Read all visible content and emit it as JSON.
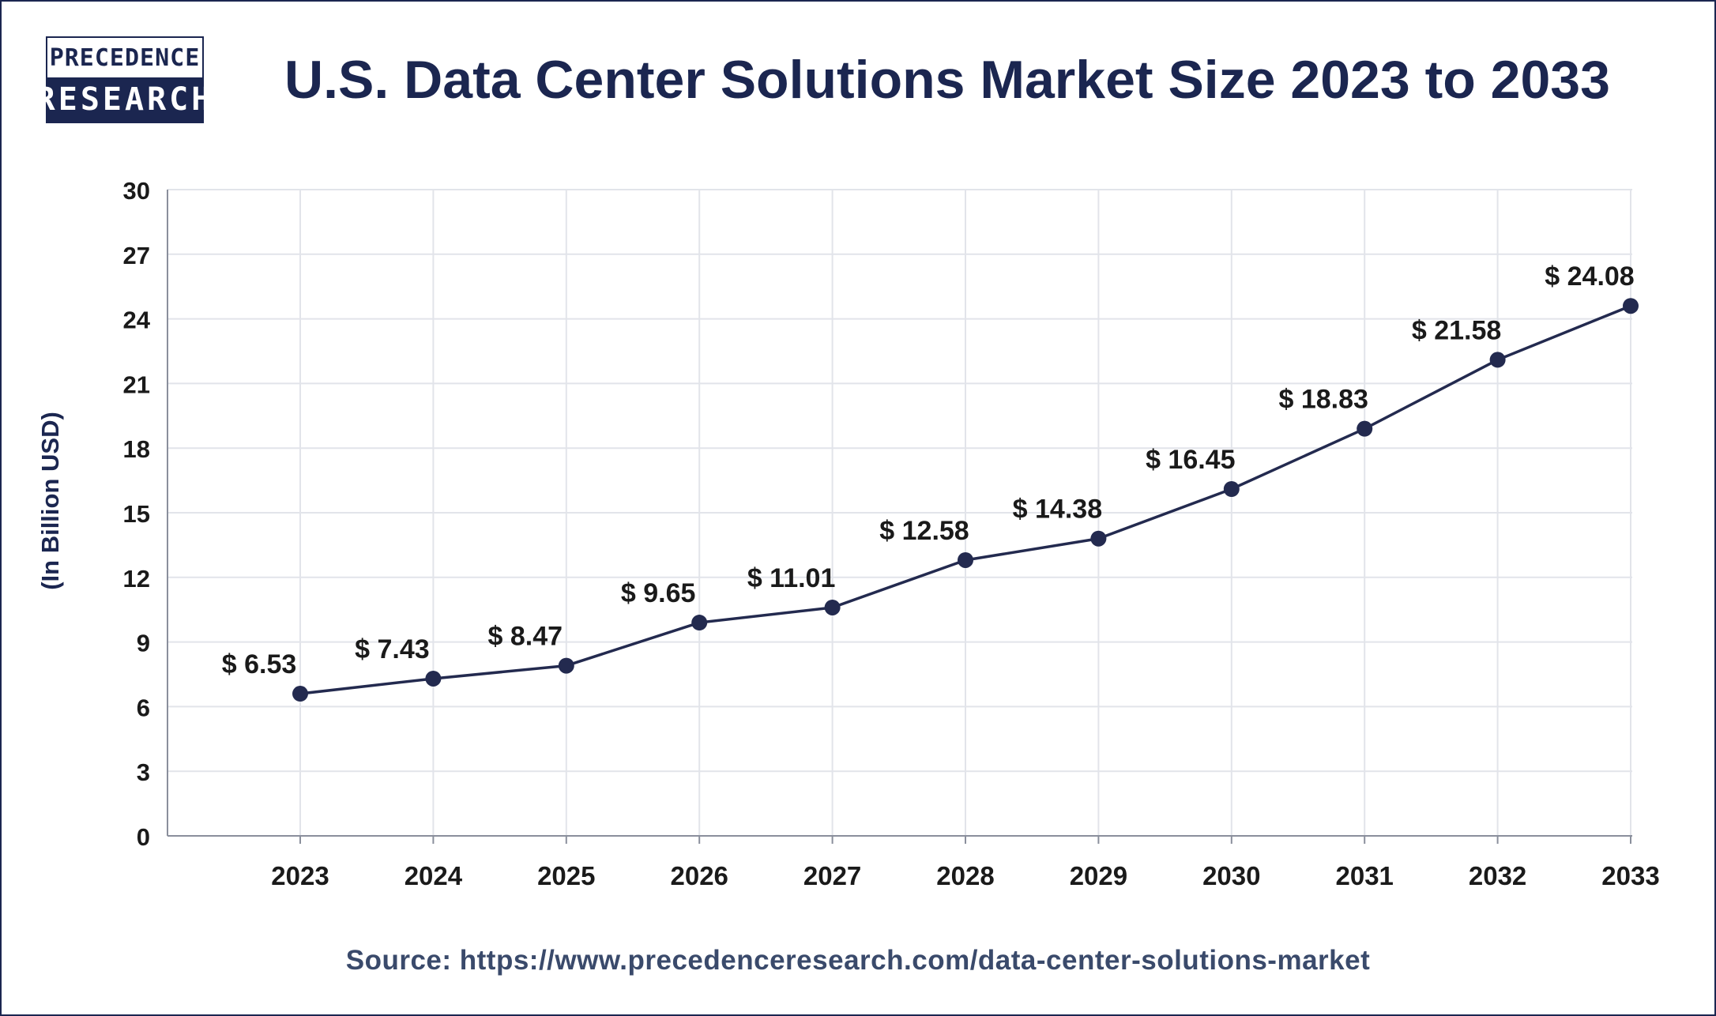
{
  "brand": {
    "logo_line1": "PRECEDENCE",
    "logo_line2": "RESEARCH"
  },
  "source_text": "Source: https://www.precedenceresearch.com/data-center-solutions-market",
  "colors": {
    "navy": "#1b2650",
    "line": "#232a4f",
    "grid": "#e2e4ea",
    "text": "#1a1a1a"
  },
  "chart_data": {
    "type": "line",
    "title": "U.S. Data Center Solutions Market Size 2023 to 2033",
    "xlabel": "",
    "ylabel": "(In Billion USD)",
    "ylim": [
      0,
      30
    ],
    "yticks": [
      "0",
      "3",
      "6",
      "9",
      "12",
      "15",
      "18",
      "21",
      "24",
      "27",
      "30"
    ],
    "categories": [
      "2023",
      "2024",
      "2025",
      "2026",
      "2027",
      "2028",
      "2029",
      "2030",
      "2031",
      "2032",
      "2033"
    ],
    "values": [
      6.53,
      7.43,
      8.47,
      9.65,
      11.01,
      12.58,
      14.38,
      16.45,
      18.83,
      21.58,
      24.08
    ],
    "plotted_values": [
      6.6,
      7.3,
      7.9,
      9.9,
      10.6,
      12.8,
      13.8,
      16.1,
      18.9,
      22.1,
      24.6
    ],
    "data_labels": [
      "$ 6.53",
      "$ 7.43",
      "$ 8.47",
      "$ 9.65",
      "$ 11.01",
      "$ 12.58",
      "$ 14.38",
      "$ 16.45",
      "$ 18.83",
      "$ 21.58",
      "$ 24.08"
    ],
    "grid": true,
    "legend": "none"
  }
}
